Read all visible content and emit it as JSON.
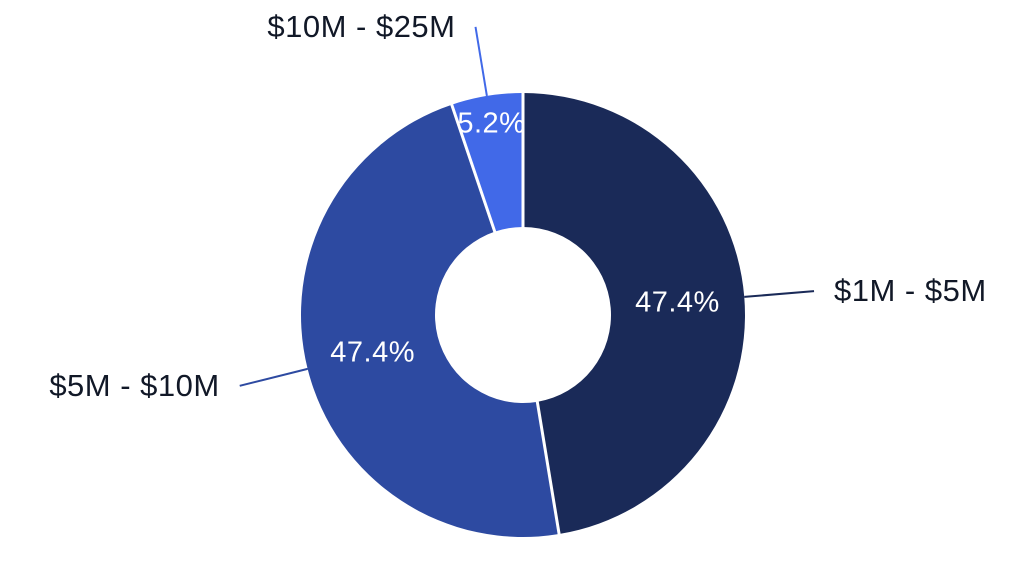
{
  "page": {
    "background_color": "#ffffff"
  },
  "chart_data": {
    "type": "pie",
    "subtype": "donut",
    "title": "",
    "categories": [
      "$1M - $5M",
      "$5M - $10M",
      "$10M - $25M"
    ],
    "values": [
      47.4,
      47.4,
      5.2
    ],
    "value_labels": [
      "47.4%",
      "47.4%",
      "5.2%"
    ],
    "colors": [
      "#1a2a58",
      "#2d4aa1",
      "#4169e8"
    ],
    "separator_color": "#ffffff",
    "percent_label_color": "#ffffff",
    "category_label_color": "#111827",
    "start_angle_deg": 0,
    "direction": "clockwise",
    "inner_radius_ratio": 0.396,
    "legend_position": "none",
    "labels_style": "outside-with-leader-lines",
    "grid": false
  }
}
